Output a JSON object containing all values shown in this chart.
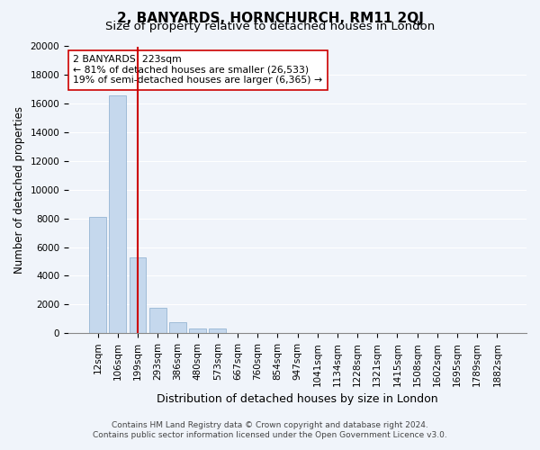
{
  "title": "2, BANYARDS, HORNCHURCH, RM11 2QJ",
  "subtitle": "Size of property relative to detached houses in London",
  "xlabel": "Distribution of detached houses by size in London",
  "ylabel": "Number of detached properties",
  "bar_values": [
    8100,
    16600,
    5300,
    1750,
    750,
    300,
    300,
    0,
    0,
    0,
    0,
    0,
    0,
    0,
    0,
    0,
    0,
    0,
    0,
    0,
    0
  ],
  "bar_labels": [
    "12sqm",
    "106sqm",
    "199sqm",
    "293sqm",
    "386sqm",
    "480sqm",
    "573sqm",
    "667sqm",
    "760sqm",
    "854sqm",
    "947sqm",
    "1041sqm",
    "1134sqm",
    "1228sqm",
    "1321sqm",
    "1415sqm",
    "1508sqm",
    "1602sqm",
    "1695sqm",
    "1789sqm",
    "1882sqm"
  ],
  "bar_color": "#c5d8ed",
  "bar_edge_color": "#a0bcd8",
  "vline_x": 2,
  "vline_color": "#cc0000",
  "annotation_title": "2 BANYARDS: 223sqm",
  "annotation_line1": "← 81% of detached houses are smaller (26,533)",
  "annotation_line2": "19% of semi-detached houses are larger (6,365) →",
  "annotation_box_color": "#ffffff",
  "annotation_box_edge_color": "#cc0000",
  "ylim": [
    0,
    20000
  ],
  "yticks": [
    0,
    2000,
    4000,
    6000,
    8000,
    10000,
    12000,
    14000,
    16000,
    18000,
    20000
  ],
  "footer_line1": "Contains HM Land Registry data © Crown copyright and database right 2024.",
  "footer_line2": "Contains public sector information licensed under the Open Government Licence v3.0.",
  "background_color": "#f0f4fa",
  "plot_bg_color": "#f0f4fa",
  "title_fontsize": 11,
  "subtitle_fontsize": 9.5,
  "tick_label_fontsize": 7.5,
  "ylabel_fontsize": 8.5,
  "xlabel_fontsize": 9
}
